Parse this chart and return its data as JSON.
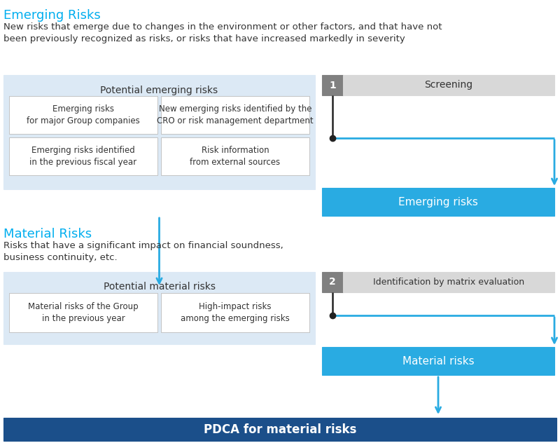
{
  "title_emerging": "Emerging Risks",
  "title_material": "Material Risks",
  "desc_emerging": "New risks that emerge due to changes in the environment or other factors, and that have not\nbeen previously recognized as risks, or risks that have increased markedly in severity",
  "desc_material": "Risks that have a significant impact on financial soundness,\nbusiness continuity, etc.",
  "potential_emerging_title": "Potential emerging risks",
  "potential_material_title": "Potential material risks",
  "emerging_cells": [
    "Emerging risks\nfor major Group companies",
    "New emerging risks identified by the\nCRO or risk management department",
    "Emerging risks identified\nin the previous fiscal year",
    "Risk information\nfrom external sources"
  ],
  "material_cells": [
    "Material risks of the Group\nin the previous year",
    "High-impact risks\namong the emerging risks"
  ],
  "step1_label": "1",
  "step1_text": "Screening",
  "step2_label": "2",
  "step2_text": "Identification by matrix evaluation",
  "emerging_risks_box": "Emerging risks",
  "material_risks_box": "Material risks",
  "pdca_box": "PDCA for material risks",
  "color_cyan_title": "#00AEEF",
  "color_cyan_box": "#29ABE2",
  "color_blue_pdca": "#1B4F8A",
  "color_light_blue_bg": "#DCE9F5",
  "color_white_cell": "#FFFFFF",
  "color_gray_step_label": "#808080",
  "color_screening_bg": "#D8D8D8",
  "color_black_line": "#222222",
  "color_dark_text": "#333333"
}
